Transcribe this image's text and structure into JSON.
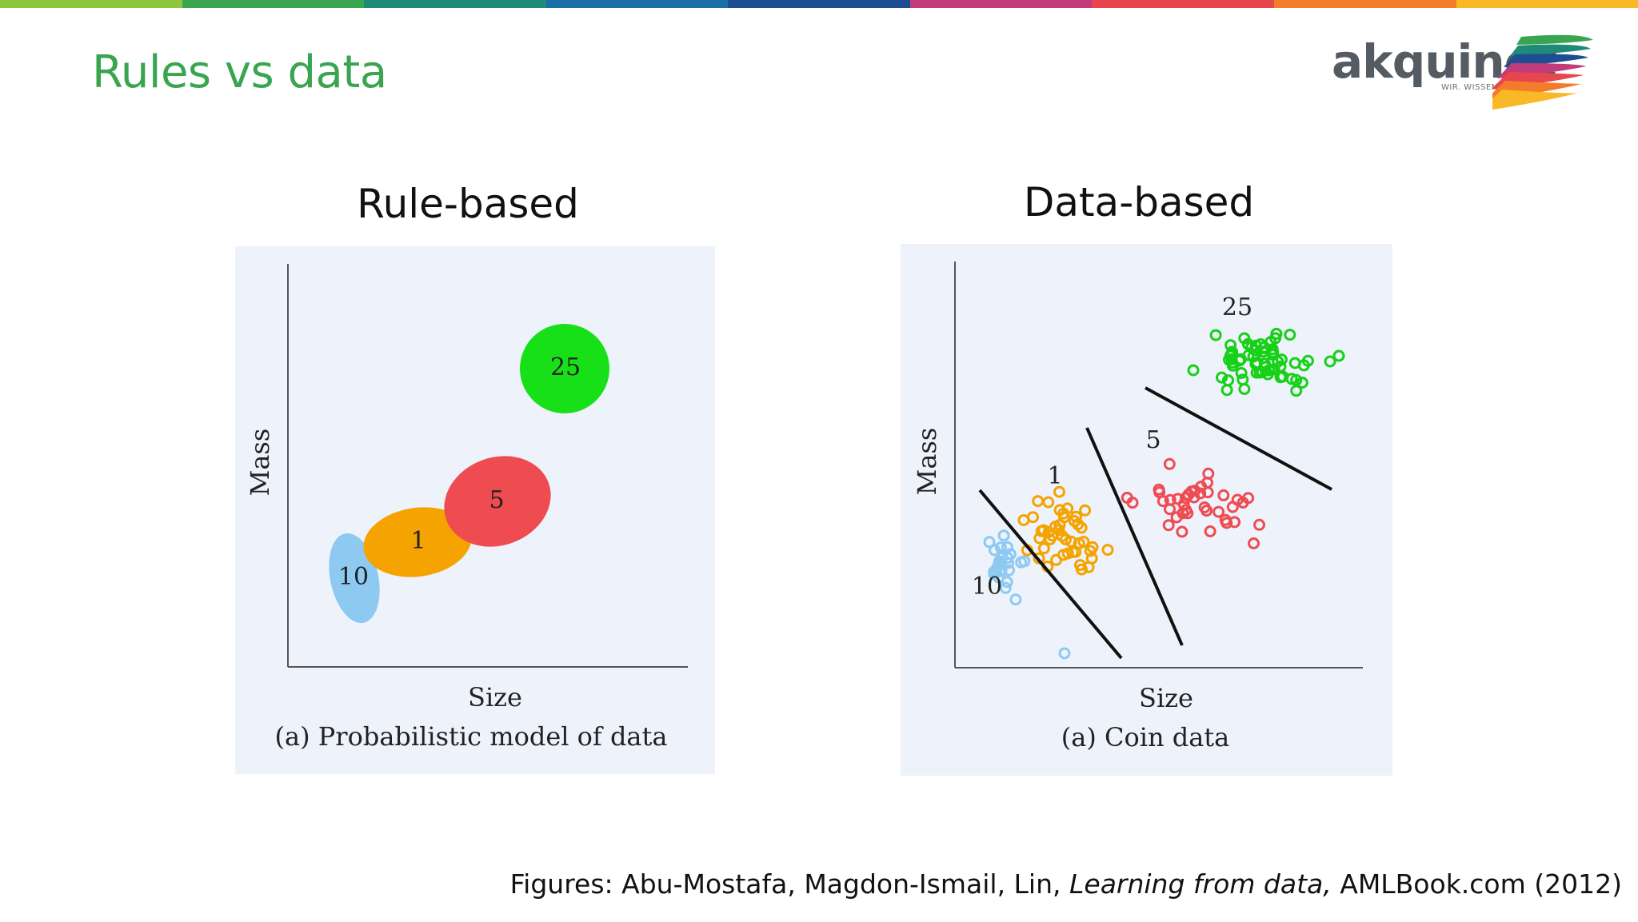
{
  "header": {
    "title": "Rules vs data",
    "color_bar": [
      "#8dc63f",
      "#3aa550",
      "#1e8a78",
      "#1a6fa8",
      "#1d4e91",
      "#c23b7a",
      "#e8464e",
      "#f47b2a",
      "#f9b825"
    ]
  },
  "logo": {
    "name": "akquinet",
    "tagline": "WIR. WISSEN. WIE.",
    "swoosh_colors": [
      "#3aa550",
      "#1e8a78",
      "#1d4e91",
      "#c23b7a",
      "#e8464e",
      "#f47b2a",
      "#f9b825"
    ]
  },
  "left_panel": {
    "heading": "Rule-based",
    "figure": {
      "xlabel": "Size",
      "ylabel": "Mass",
      "caption": "(a) Probabilistic model of data",
      "regions": [
        {
          "label": "10",
          "color": "#8ec9f2"
        },
        {
          "label": "1",
          "color": "#f5a300"
        },
        {
          "label": "5",
          "color": "#ef4c52"
        },
        {
          "label": "25",
          "color": "#18e018"
        }
      ]
    }
  },
  "right_panel": {
    "heading": "Data-based",
    "figure": {
      "xlabel": "Size",
      "ylabel": "Mass",
      "caption": "(a) Coin data",
      "clusters": [
        {
          "label": "10",
          "color": "#8ec9f2"
        },
        {
          "label": "1",
          "color": "#f5a300"
        },
        {
          "label": "5",
          "color": "#ef4c52"
        },
        {
          "label": "25",
          "color": "#18d018"
        }
      ]
    }
  },
  "footer": {
    "citation_prefix": "Figures: Abu-Mostafa, Magdon-Ismail, Lin, ",
    "citation_title": "Learning from data,",
    "citation_suffix": " AMLBook.com (2012)"
  }
}
